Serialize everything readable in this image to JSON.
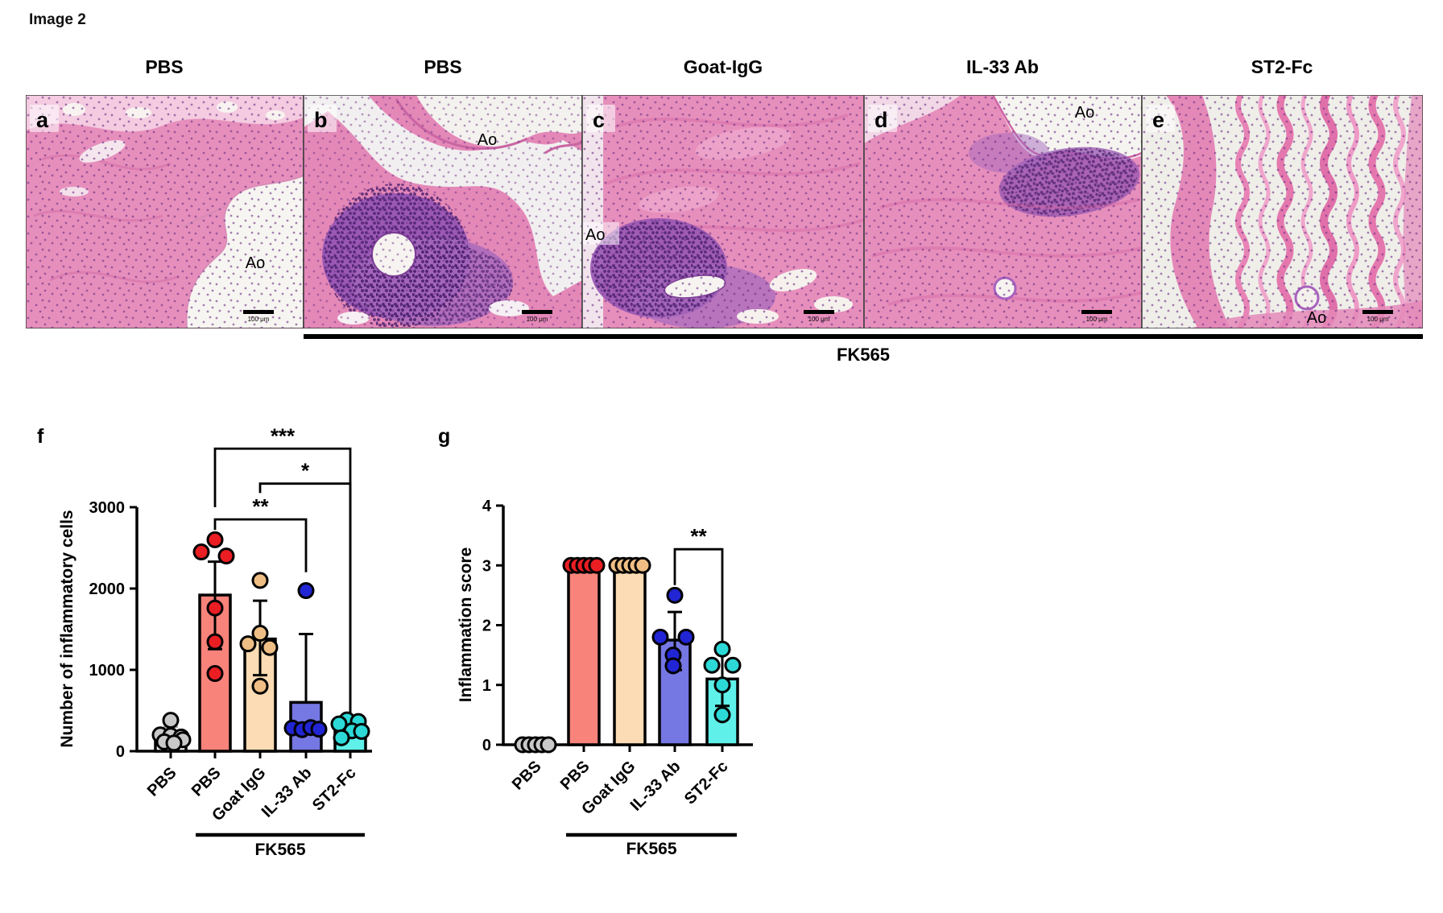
{
  "page": {
    "title": "Image 2"
  },
  "histology": {
    "group_label": "FK565",
    "panels": [
      {
        "letter": "a",
        "title": "PBS",
        "annotation": "Ao",
        "scale_bar": "100 μm"
      },
      {
        "letter": "b",
        "title": "PBS",
        "annotation": "Ao",
        "scale_bar": "100 μm"
      },
      {
        "letter": "c",
        "title": "Goat-IgG",
        "annotation": "Ao",
        "scale_bar": "100 μm"
      },
      {
        "letter": "d",
        "title": "IL-33 Ab",
        "annotation": "Ao",
        "scale_bar": "100 μm"
      },
      {
        "letter": "e",
        "title": "ST2-Fc",
        "annotation": "Ao",
        "scale_bar": "100 μm"
      }
    ]
  },
  "chart_data": [
    {
      "id": "f",
      "type": "bar",
      "panel_label": "f",
      "ylabel": "Number of inflammatory cells",
      "ylim": [
        0,
        3000
      ],
      "yticks": [
        0,
        1000,
        2000,
        3000
      ],
      "categories": [
        "PBS",
        "PBS",
        "Goat IgG",
        "IL-33 Ab",
        "ST2-Fc"
      ],
      "group_underline": {
        "label": "FK565",
        "from": 1,
        "to": 4
      },
      "bars": [
        {
          "category": "PBS",
          "value": 150,
          "fill": "#FFFFFF",
          "point_color": "#C9C9C9",
          "error": [
            null,
            300
          ],
          "points": [
            [
              0,
              380
            ],
            [
              -13,
              200
            ],
            [
              0,
              190
            ],
            [
              13,
              175
            ],
            [
              15,
              140
            ],
            [
              -8,
              115
            ],
            [
              4,
              100
            ]
          ]
        },
        {
          "category": "PBS",
          "value": 1920,
          "fill": "#F8837B",
          "point_color": "#EB1E23",
          "error": [
            1255,
            2330
          ],
          "points": [
            [
              0,
              2600
            ],
            [
              -17,
              2450
            ],
            [
              14,
              2400
            ],
            [
              0,
              1760
            ],
            [
              0,
              1345
            ],
            [
              0,
              955
            ]
          ]
        },
        {
          "category": "Goat IgG",
          "value": 1380,
          "fill": "#FBDCB4",
          "point_color": "#EFBE84",
          "error": [
            935,
            1850
          ],
          "points": [
            [
              0,
              2100
            ],
            [
              0,
              1450
            ],
            [
              -15,
              1320
            ],
            [
              12,
              1275
            ],
            [
              0,
              800
            ]
          ]
        },
        {
          "category": "IL-33 Ab",
          "value": 600,
          "fill": "#7577E3",
          "point_color": "#2125D3",
          "error": [
            null,
            1440
          ],
          "points": [
            [
              0,
              1975
            ],
            [
              -17,
              285
            ],
            [
              -5,
              265
            ],
            [
              6,
              290
            ],
            [
              16,
              270
            ]
          ]
        },
        {
          "category": "ST2-Fc",
          "value": 240,
          "fill": "#5FF0E9",
          "point_color": "#2CD9D6",
          "error": null,
          "points": [
            [
              -4,
              385
            ],
            [
              10,
              365
            ],
            [
              -14,
              335
            ],
            [
              2,
              250
            ],
            [
              14,
              243
            ],
            [
              -11,
              165
            ]
          ]
        }
      ],
      "significance": [
        {
          "from": 1,
          "to": 4,
          "y": 3720,
          "left_end": 3000,
          "right_end": 475,
          "label": "***"
        },
        {
          "from": 2,
          "to": 4,
          "y": 3290,
          "left_end": 3175,
          "right_end": 475,
          "label": "*"
        },
        {
          "from": 1,
          "to": 3,
          "y": 2850,
          "left_end": 2720,
          "right_end": 2200,
          "label": "**"
        }
      ]
    },
    {
      "id": "g",
      "type": "bar",
      "panel_label": "g",
      "ylabel": "Inflammation score",
      "ylim": [
        0,
        4
      ],
      "yticks": [
        0,
        1,
        2,
        3,
        4
      ],
      "categories": [
        "PBS",
        "PBS",
        "Goat IgG",
        "IL-33 Ab",
        "ST2-Fc"
      ],
      "group_underline": {
        "label": "FK565",
        "from": 1,
        "to": 4
      },
      "bars": [
        {
          "category": "PBS",
          "value": 0,
          "fill": "#FFFFFF",
          "point_color": "#C9C9C9",
          "error": null,
          "points": [
            [
              -16,
              0
            ],
            [
              -8,
              0
            ],
            [
              0,
              0
            ],
            [
              8,
              0
            ],
            [
              16,
              0
            ]
          ]
        },
        {
          "category": "PBS",
          "value": 3,
          "fill": "#F8837B",
          "point_color": "#EB1E23",
          "error": null,
          "points": [
            [
              -16,
              3
            ],
            [
              -8,
              3
            ],
            [
              0,
              3
            ],
            [
              8,
              3
            ],
            [
              16,
              3
            ]
          ]
        },
        {
          "category": "Goat IgG",
          "value": 3,
          "fill": "#FBDCB4",
          "point_color": "#EFBE84",
          "error": null,
          "points": [
            [
              -16,
              3
            ],
            [
              -8,
              3
            ],
            [
              0,
              3
            ],
            [
              8,
              3
            ],
            [
              16,
              3
            ]
          ]
        },
        {
          "category": "IL-33 Ab",
          "value": 1.75,
          "fill": "#7577E3",
          "point_color": "#2125D3",
          "error": [
            1.25,
            2.22
          ],
          "points": [
            [
              0,
              2.5
            ],
            [
              -18,
              1.8
            ],
            [
              14,
              1.8
            ],
            [
              -2,
              1.5
            ],
            [
              -2,
              1.32
            ]
          ]
        },
        {
          "category": "ST2-Fc",
          "value": 1.1,
          "fill": "#5FF0E9",
          "point_color": "#2CD9D6",
          "error": [
            0.65,
            1.57
          ],
          "points": [
            [
              0,
              1.6
            ],
            [
              -13,
              1.33
            ],
            [
              13,
              1.33
            ],
            [
              0,
              1.0
            ],
            [
              0,
              0.5
            ]
          ]
        }
      ],
      "significance": [
        {
          "from": 3,
          "to": 4,
          "y": 3.27,
          "left_end": 2.67,
          "right_end": 1.68,
          "label": "**"
        }
      ]
    }
  ]
}
